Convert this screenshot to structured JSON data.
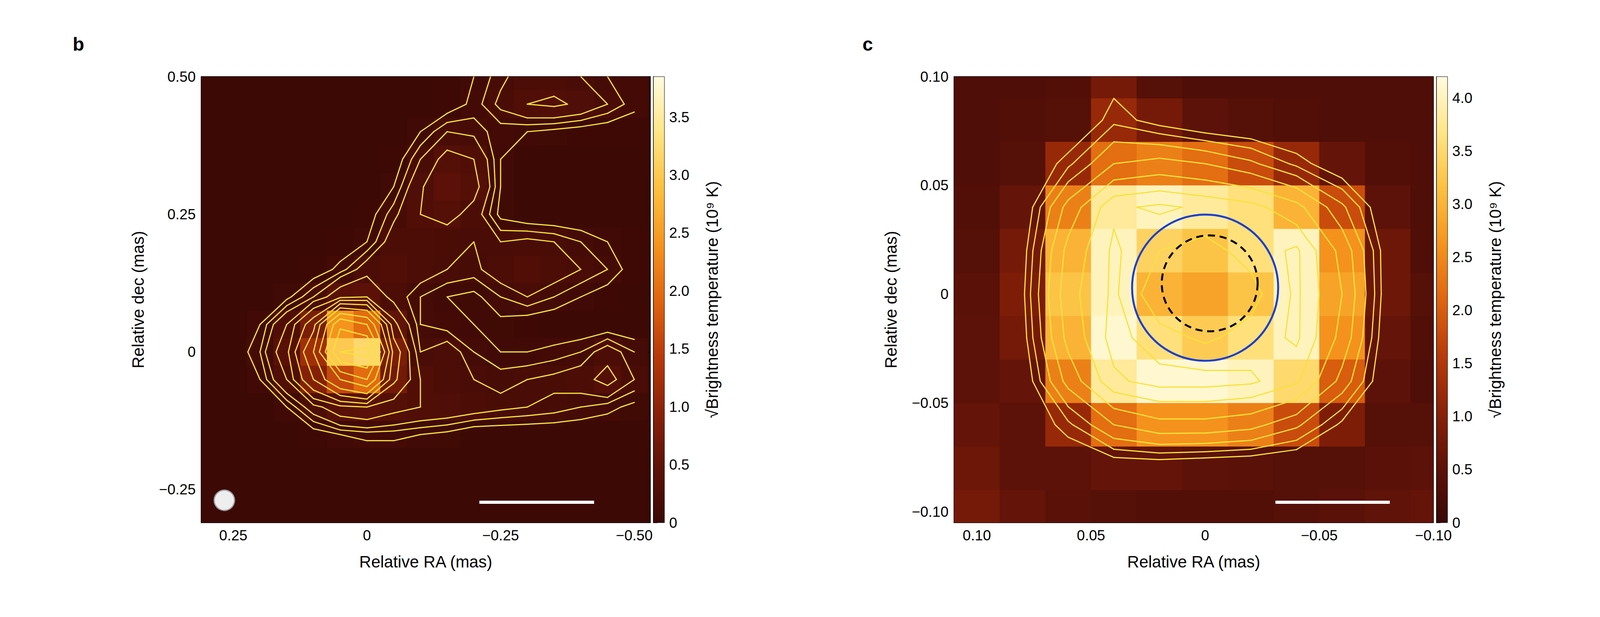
{
  "chart_data": [
    {
      "type": "heatmap",
      "panel_label": "b",
      "x_label": "Relative RA (mas)",
      "y_label": "Relative dec (mas)",
      "xlim": [
        0.31,
        -0.53
      ],
      "ylim": [
        -0.31,
        0.5
      ],
      "xticks": [
        0.25,
        0,
        {
          "value": -0.25,
          "label": "−0.25"
        },
        {
          "value": -0.5,
          "label": "−0.50"
        }
      ],
      "yticks": [
        {
          "value": -0.25,
          "label": "−0.25"
        },
        0,
        0.25,
        {
          "value": 0.5,
          "label": "0.50"
        }
      ],
      "x": [
        0.3,
        0.25,
        0.2,
        0.15,
        0.1,
        0.05,
        0,
        -0.05,
        -0.1,
        -0.15,
        -0.2,
        -0.25,
        -0.3,
        -0.35,
        -0.4,
        -0.45,
        -0.5
      ],
      "y": [
        0.5,
        0.45,
        0.4,
        0.35,
        0.3,
        0.25,
        0.2,
        0.15,
        0.1,
        0.05,
        0,
        -0.05,
        -0.1,
        -0.15,
        -0.2,
        -0.25,
        -0.3
      ],
      "z": [
        [
          0.03,
          0.03,
          0.03,
          0.03,
          0.03,
          0.03,
          0.03,
          0.03,
          0.03,
          0.05,
          0.1,
          0.18,
          0.25,
          0.25,
          0.2,
          0.15,
          0.12
        ],
        [
          0.03,
          0.03,
          0.03,
          0.03,
          0.03,
          0.03,
          0.03,
          0.03,
          0.04,
          0.05,
          0.12,
          0.22,
          0.3,
          0.32,
          0.28,
          0.2,
          0.12
        ],
        [
          0.03,
          0.03,
          0.03,
          0.03,
          0.03,
          0.03,
          0.03,
          0.04,
          0.1,
          0.2,
          0.18,
          0.12,
          0.1,
          0.08,
          0.06,
          0.05,
          0.05
        ],
        [
          0.03,
          0.03,
          0.03,
          0.03,
          0.03,
          0.03,
          0.03,
          0.05,
          0.2,
          0.35,
          0.3,
          0.1,
          0.04,
          0.04,
          0.04,
          0.04,
          0.04
        ],
        [
          0.03,
          0.03,
          0.03,
          0.03,
          0.03,
          0.03,
          0.04,
          0.1,
          0.28,
          0.45,
          0.35,
          0.1,
          0.04,
          0.03,
          0.03,
          0.03,
          0.03
        ],
        [
          0.03,
          0.03,
          0.03,
          0.03,
          0.03,
          0.03,
          0.06,
          0.18,
          0.3,
          0.35,
          0.25,
          0.08,
          0.04,
          0.03,
          0.03,
          0.03,
          0.03
        ],
        [
          0.03,
          0.03,
          0.03,
          0.03,
          0.03,
          0.05,
          0.1,
          0.25,
          0.25,
          0.22,
          0.2,
          0.2,
          0.22,
          0.2,
          0.15,
          0.1,
          0.05
        ],
        [
          0.03,
          0.03,
          0.03,
          0.03,
          0.05,
          0.12,
          0.25,
          0.3,
          0.25,
          0.2,
          0.18,
          0.25,
          0.3,
          0.25,
          0.2,
          0.15,
          0.06
        ],
        [
          0.03,
          0.03,
          0.04,
          0.08,
          0.2,
          0.4,
          0.45,
          0.25,
          0.15,
          0.1,
          0.08,
          0.15,
          0.2,
          0.15,
          0.1,
          0.06,
          0.04
        ],
        [
          0.03,
          0.03,
          0.1,
          0.3,
          0.8,
          2.4,
          2.0,
          0.5,
          0.15,
          0.12,
          0.1,
          0.08,
          0.05,
          0.04,
          0.04,
          0.04,
          0.04
        ],
        [
          0.03,
          0.04,
          0.15,
          0.4,
          1.2,
          3.0,
          3.2,
          0.8,
          0.2,
          0.25,
          0.15,
          0.1,
          0.1,
          0.12,
          0.15,
          0.25,
          0.15
        ],
        [
          0.03,
          0.03,
          0.1,
          0.3,
          0.9,
          1.6,
          2.0,
          0.7,
          0.3,
          0.25,
          0.2,
          0.18,
          0.2,
          0.22,
          0.25,
          0.35,
          0.2
        ],
        [
          0.03,
          0.03,
          0.04,
          0.1,
          0.25,
          0.4,
          0.45,
          0.35,
          0.3,
          0.28,
          0.25,
          0.22,
          0.2,
          0.18,
          0.15,
          0.12,
          0.08
        ],
        [
          0.03,
          0.03,
          0.03,
          0.03,
          0.06,
          0.1,
          0.12,
          0.12,
          0.1,
          0.08,
          0.04,
          0.04,
          0.04,
          0.04,
          0.04,
          0.04,
          0.04
        ],
        [
          0.03,
          0.03,
          0.03,
          0.03,
          0.03,
          0.03,
          0.03,
          0.03,
          0.03,
          0.03,
          0.03,
          0.03,
          0.03,
          0.03,
          0.03,
          0.03,
          0.03
        ],
        [
          0.03,
          0.03,
          0.03,
          0.03,
          0.03,
          0.03,
          0.03,
          0.03,
          0.03,
          0.03,
          0.03,
          0.03,
          0.03,
          0.03,
          0.03,
          0.03,
          0.03
        ],
        [
          0.03,
          0.03,
          0.03,
          0.03,
          0.03,
          0.03,
          0.03,
          0.03,
          0.03,
          0.03,
          0.03,
          0.03,
          0.03,
          0.03,
          0.03,
          0.03,
          0.03
        ]
      ],
      "contour_levels": [
        0.1,
        0.15,
        0.2,
        0.3,
        0.45,
        0.65,
        0.9,
        1.2,
        1.6,
        2.0,
        2.5,
        3.0
      ],
      "colorbar": {
        "label": "√Brightness temperature (10⁹ K)",
        "lim": [
          0,
          3.85
        ],
        "ticks": [
          0,
          0.5,
          {
            "value": 1,
            "label": "1.0"
          },
          1.5,
          {
            "value": 2,
            "label": "2.0"
          },
          2.5,
          {
            "value": 3,
            "label": "3.0"
          },
          3.5
        ]
      }
    },
    {
      "type": "heatmap",
      "panel_label": "c",
      "x_label": "Relative RA (mas)",
      "y_label": "Relative dec (mas)",
      "xlim": [
        0.11,
        -0.1
      ],
      "ylim": [
        -0.105,
        0.1
      ],
      "xticks": [
        {
          "value": 0.1,
          "label": "0.10"
        },
        0.05,
        0,
        {
          "value": -0.05,
          "label": "−0.05"
        },
        {
          "value": -0.1,
          "label": "−0.10"
        }
      ],
      "yticks": [
        {
          "value": -0.1,
          "label": "−0.10"
        },
        {
          "value": -0.05,
          "label": "−0.05"
        },
        0,
        0.05,
        {
          "value": 0.1,
          "label": "0.10"
        }
      ],
      "x": [
        0.1,
        0.08,
        0.06,
        0.04,
        0.02,
        0,
        -0.02,
        -0.04,
        -0.06,
        -0.08,
        -0.1
      ],
      "y": [
        0.1,
        0.08,
        0.06,
        0.04,
        0.02,
        0,
        -0.02,
        -0.04,
        -0.06,
        -0.08,
        -0.1
      ],
      "z": [
        [
          0.3,
          0.3,
          0.35,
          0.8,
          0.4,
          0.3,
          0.3,
          0.3,
          0.3,
          0.3,
          0.3
        ],
        [
          0.3,
          0.35,
          0.4,
          1.2,
          0.8,
          0.5,
          0.4,
          0.35,
          0.3,
          0.3,
          0.3
        ],
        [
          0.3,
          0.4,
          1.2,
          2.2,
          2.4,
          2.2,
          1.8,
          1.2,
          0.6,
          0.35,
          0.3
        ],
        [
          0.35,
          0.6,
          2.4,
          3.8,
          4.0,
          3.8,
          3.6,
          3.0,
          1.8,
          0.5,
          0.3
        ],
        [
          0.4,
          0.8,
          3.0,
          4.0,
          3.4,
          3.2,
          3.6,
          4.0,
          2.6,
          0.7,
          0.3
        ],
        [
          0.45,
          0.9,
          3.2,
          4.0,
          3.0,
          2.8,
          3.2,
          4.0,
          2.8,
          0.7,
          0.4
        ],
        [
          0.5,
          0.8,
          3.0,
          4.1,
          3.6,
          3.3,
          3.6,
          4.0,
          2.6,
          0.6,
          0.35
        ],
        [
          0.5,
          0.6,
          2.4,
          3.8,
          4.1,
          4.1,
          4.0,
          3.5,
          2.0,
          0.5,
          0.3
        ],
        [
          0.6,
          0.5,
          1.2,
          2.2,
          2.6,
          2.6,
          2.4,
          1.8,
          0.9,
          0.4,
          0.4
        ],
        [
          0.7,
          0.5,
          0.5,
          0.6,
          0.6,
          0.5,
          0.45,
          0.4,
          0.4,
          0.45,
          0.5
        ],
        [
          0.8,
          0.6,
          0.45,
          0.4,
          0.35,
          0.35,
          0.35,
          0.4,
          0.45,
          0.55,
          0.6
        ]
      ],
      "contour_levels": [
        1.0,
        1.3,
        1.7,
        2.2,
        2.8,
        3.4,
        3.9
      ],
      "circles": [
        {
          "center": [
            0,
            0.003
          ],
          "radius": 0.032,
          "color": "#1c3fcf",
          "line_style": "solid"
        },
        {
          "center": [
            -0.002,
            0.005
          ],
          "radius": 0.021,
          "color": "#000000",
          "line_style": "dashed"
        }
      ],
      "colorbar": {
        "label": "√Brightness temperature (10⁹ K)",
        "lim": [
          0,
          4.2
        ],
        "ticks": [
          0,
          0.5,
          {
            "value": 1,
            "label": "1.0"
          },
          1.5,
          {
            "value": 2,
            "label": "2.0"
          },
          2.5,
          {
            "value": 3,
            "label": "3.0"
          },
          3.5,
          {
            "value": 4,
            "label": "4.0"
          }
        ]
      }
    }
  ]
}
